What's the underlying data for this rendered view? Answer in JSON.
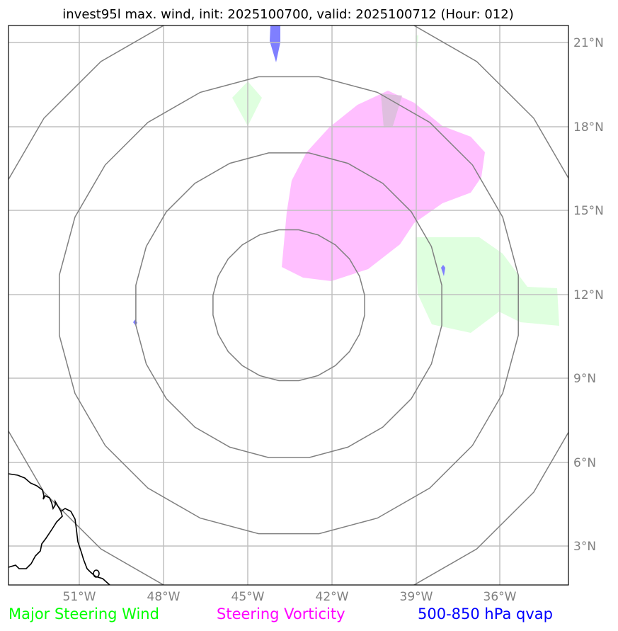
{
  "title": "invest95l max. wind, init: 2025100700, valid: 2025100712 (Hour: 012)",
  "lon_ticks": [
    "51°W",
    "48°W",
    "45°W",
    "42°W",
    "39°W",
    "36°W"
  ],
  "lat_ticks": [
    "21°N",
    "18°N",
    "15°N",
    "12°N",
    "9°N",
    "6°N",
    "3°N"
  ],
  "legend": [
    {
      "label": "Major Steering Wind",
      "color": "#00ff00"
    },
    {
      "label": "Steering Vorticity",
      "color": "#ff00ff"
    },
    {
      "label": "500-850 hPa qvap",
      "color": "#0000ff"
    }
  ],
  "colors": {
    "vorticity_fill": "#ffbfff",
    "wind_fill": "#dfffdf",
    "qvap_fill": "#7f7fff",
    "rings": "#808080",
    "grid": "#c0c0c0"
  }
}
